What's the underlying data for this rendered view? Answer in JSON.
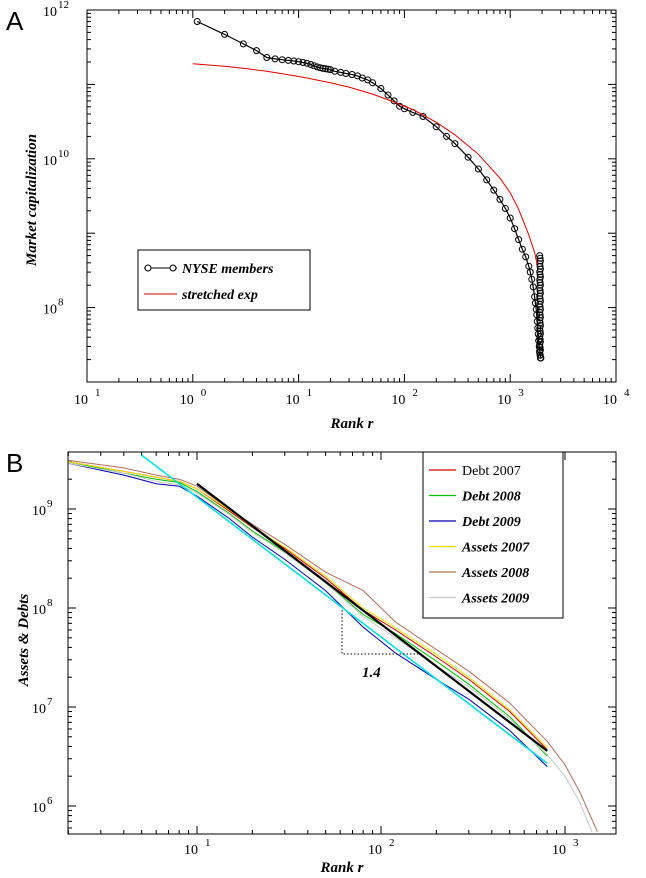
{
  "chart_data": [
    {
      "panel": "A",
      "type": "line",
      "xlabel": "Rank r",
      "ylabel": "Market capitalization",
      "xscale": "log",
      "yscale": "log",
      "xlim": [
        1,
        10000
      ],
      "ylim": [
        10000000.0,
        1000000000000.0
      ],
      "x_ticks": [
        "10^1",
        "10^0",
        "10^1",
        "10^2",
        "10^3",
        "10^4"
      ],
      "y_ticks": [
        "10^8",
        "10^10",
        "10^12"
      ],
      "grid": false,
      "legend_position": "lower-left",
      "series": [
        {
          "name": "NYSE members",
          "style": "black line with open circle markers",
          "color": "#000000",
          "x": [
            1.1,
            2,
            3,
            4,
            5,
            6,
            7,
            8,
            9,
            10,
            11,
            12,
            13,
            14,
            15,
            16,
            17,
            18,
            19,
            20,
            22,
            25,
            28,
            32,
            36,
            40,
            45,
            50,
            60,
            70,
            80,
            90,
            100,
            120,
            150,
            200,
            250,
            300,
            400,
            500,
            600,
            700,
            800,
            900,
            1000,
            1100,
            1200,
            1300,
            1400,
            1500,
            1550,
            1600,
            1650,
            1700,
            1730,
            1760,
            1780,
            1800,
            1820,
            1840,
            1860,
            1880,
            1900,
            1920,
            1950
          ],
          "y": [
            700000000000.0,
            470000000000.0,
            350000000000.0,
            285000000000.0,
            230000000000.0,
            220000000000.0,
            215000000000.0,
            210000000000.0,
            206000000000.0,
            202000000000.0,
            197000000000.0,
            192000000000.0,
            185000000000.0,
            178000000000.0,
            172000000000.0,
            167000000000.0,
            164000000000.0,
            162000000000.0,
            160000000000.0,
            158000000000.0,
            150000000000.0,
            145000000000.0,
            140000000000.0,
            136000000000.0,
            130000000000.0,
            122000000000.0,
            115000000000.0,
            105000000000.0,
            88000000000.0,
            72000000000.0,
            60000000000.0,
            51000000000.0,
            47000000000.0,
            42000000000.0,
            37000000000.0,
            27000000000.0,
            20000000000.0,
            16000000000.0,
            10500000000.0,
            7300000000.0,
            5200000000.0,
            3800000000.0,
            2850000000.0,
            2150000000.0,
            1600000000.0,
            1150000000.0,
            820000000.0,
            610000000.0,
            480000000.0,
            360000000.0,
            300000000.0,
            240000000.0,
            190000000.0,
            140000000.0,
            115000000.0,
            95000000.0,
            80000000.0,
            65000000.0,
            53000000.0,
            44000000.0,
            36000000.0,
            30000000.0,
            26000000.0,
            23000000.0,
            21000000.0
          ]
        },
        {
          "name": "stretched exp",
          "style": "red line",
          "color": "#e00000",
          "x": [
            1,
            2,
            3,
            5,
            8,
            12,
            20,
            30,
            50,
            80,
            120,
            200,
            300,
            500,
            800,
            1000,
            1200,
            1500,
            1700,
            1800
          ],
          "y": [
            190000000000.0,
            175000000000.0,
            165000000000.0,
            150000000000.0,
            135000000000.0,
            122000000000.0,
            105000000000.0,
            92000000000.0,
            74000000000.0,
            58000000000.0,
            46000000000.0,
            31000000000.0,
            21000000000.0,
            11500000000.0,
            5500000000.0,
            3500000000.0,
            2100000000.0,
            950000000.0,
            550000000.0,
            380000000.0
          ]
        }
      ]
    },
    {
      "panel": "B",
      "type": "line",
      "xlabel": "Rank r",
      "ylabel": "Assets & Debts",
      "xscale": "log",
      "yscale": "log",
      "xlim": [
        2,
        2000
      ],
      "ylim": [
        500000.0,
        4000000000.0
      ],
      "x_ticks": [
        "10^1",
        "10^2",
        "10^3"
      ],
      "y_ticks": [
        "10^6",
        "10^7",
        "10^8",
        "10^9"
      ],
      "grid": false,
      "legend_position": "top-right",
      "annotation": "1.4",
      "series": [
        {
          "name": "Debt 2007",
          "color": "#d00000",
          "label_style": "plain",
          "x": [
            2,
            4,
            6,
            8,
            10,
            15,
            20,
            30,
            50,
            80,
            120,
            200,
            300,
            500,
            800
          ],
          "y": [
            3000000000.0,
            2400000000.0,
            2100000000.0,
            1900000000.0,
            1600000000.0,
            950000000.0,
            650000000.0,
            400000000.0,
            200000000.0,
            95000000.0,
            60000000.0,
            32000000.0,
            19000000.0,
            9000000.0,
            3700000.0
          ]
        },
        {
          "name": "Debt 2008",
          "color": "#00c000",
          "label_style": "bold-italic",
          "x": [
            2,
            4,
            6,
            8,
            10,
            15,
            20,
            30,
            50,
            80,
            120,
            200,
            300,
            500,
            800
          ],
          "y": [
            3000000000.0,
            2300000000.0,
            2000000000.0,
            1850000000.0,
            1500000000.0,
            900000000.0,
            600000000.0,
            370000000.0,
            180000000.0,
            86000000.0,
            55000000.0,
            29000000.0,
            17000000.0,
            8000000.0,
            3200000.0
          ]
        },
        {
          "name": "Debt 2009",
          "color": "#0000b0",
          "label_style": "bold-italic",
          "x": [
            2,
            4,
            6,
            8,
            10,
            15,
            20,
            30,
            50,
            80,
            120,
            200,
            300,
            500,
            800
          ],
          "y": [
            2900000000.0,
            2200000000.0,
            1800000000.0,
            1700000000.0,
            1350000000.0,
            800000000.0,
            520000000.0,
            310000000.0,
            150000000.0,
            64000000.0,
            35000000.0,
            19000000.0,
            12000000.0,
            5800000.0,
            2500000.0
          ]
        },
        {
          "name": "Assets 2007",
          "color": "#f0e000",
          "label_style": "bold-italic",
          "x": [
            2,
            4,
            6,
            8,
            10,
            15,
            20,
            30,
            50,
            80,
            120,
            200,
            300,
            500,
            800
          ],
          "y": [
            3000000000.0,
            2400000000.0,
            2100000000.0,
            1900000000.0,
            1600000000.0,
            980000000.0,
            660000000.0,
            410000000.0,
            210000000.0,
            100000000.0,
            63000000.0,
            34000000.0,
            20000000.0,
            9400000.0,
            3900000.0
          ]
        },
        {
          "name": "Assets 2008",
          "color": "#b07060",
          "label_style": "bold-italic",
          "x": [
            2,
            4,
            6,
            8,
            10,
            15,
            20,
            30,
            50,
            80,
            120,
            200,
            300,
            500,
            800,
            1000,
            1200,
            1500
          ],
          "y": [
            3100000000.0,
            2600000000.0,
            2200000000.0,
            2000000000.0,
            1700000000.0,
            1000000000.0,
            700000000.0,
            440000000.0,
            230000000.0,
            150000000.0,
            72000000.0,
            38000000.0,
            23000000.0,
            11000000.0,
            4500000.0,
            2600000.0,
            1400000.0,
            550000.0
          ]
        },
        {
          "name": "Assets 2009",
          "color": "#c8c8c8",
          "label_style": "bold-italic",
          "x": [
            2,
            4,
            6,
            8,
            10,
            15,
            20,
            30,
            50,
            80,
            120,
            200,
            300,
            500,
            800,
            1000,
            1200,
            1400
          ],
          "y": [
            2900000000.0,
            2300000000.0,
            1900000000.0,
            1750000000.0,
            1450000000.0,
            880000000.0,
            580000000.0,
            360000000.0,
            180000000.0,
            82000000.0,
            50000000.0,
            26000000.0,
            16000000.0,
            7600000.0,
            3300000.0,
            2000000.0,
            1100000.0,
            550000.0
          ]
        },
        {
          "name": "",
          "color": "#00e0e0",
          "role": "power-law fit (slope 1.4)",
          "x": [
            5,
            800
          ],
          "y": [
            3500000000.0,
            2700000.0
          ]
        },
        {
          "name": "",
          "color": "#000000",
          "role": "power-law fit",
          "x": [
            10,
            800
          ],
          "y": [
            1800000000.0,
            3600000.0
          ]
        }
      ]
    }
  ]
}
